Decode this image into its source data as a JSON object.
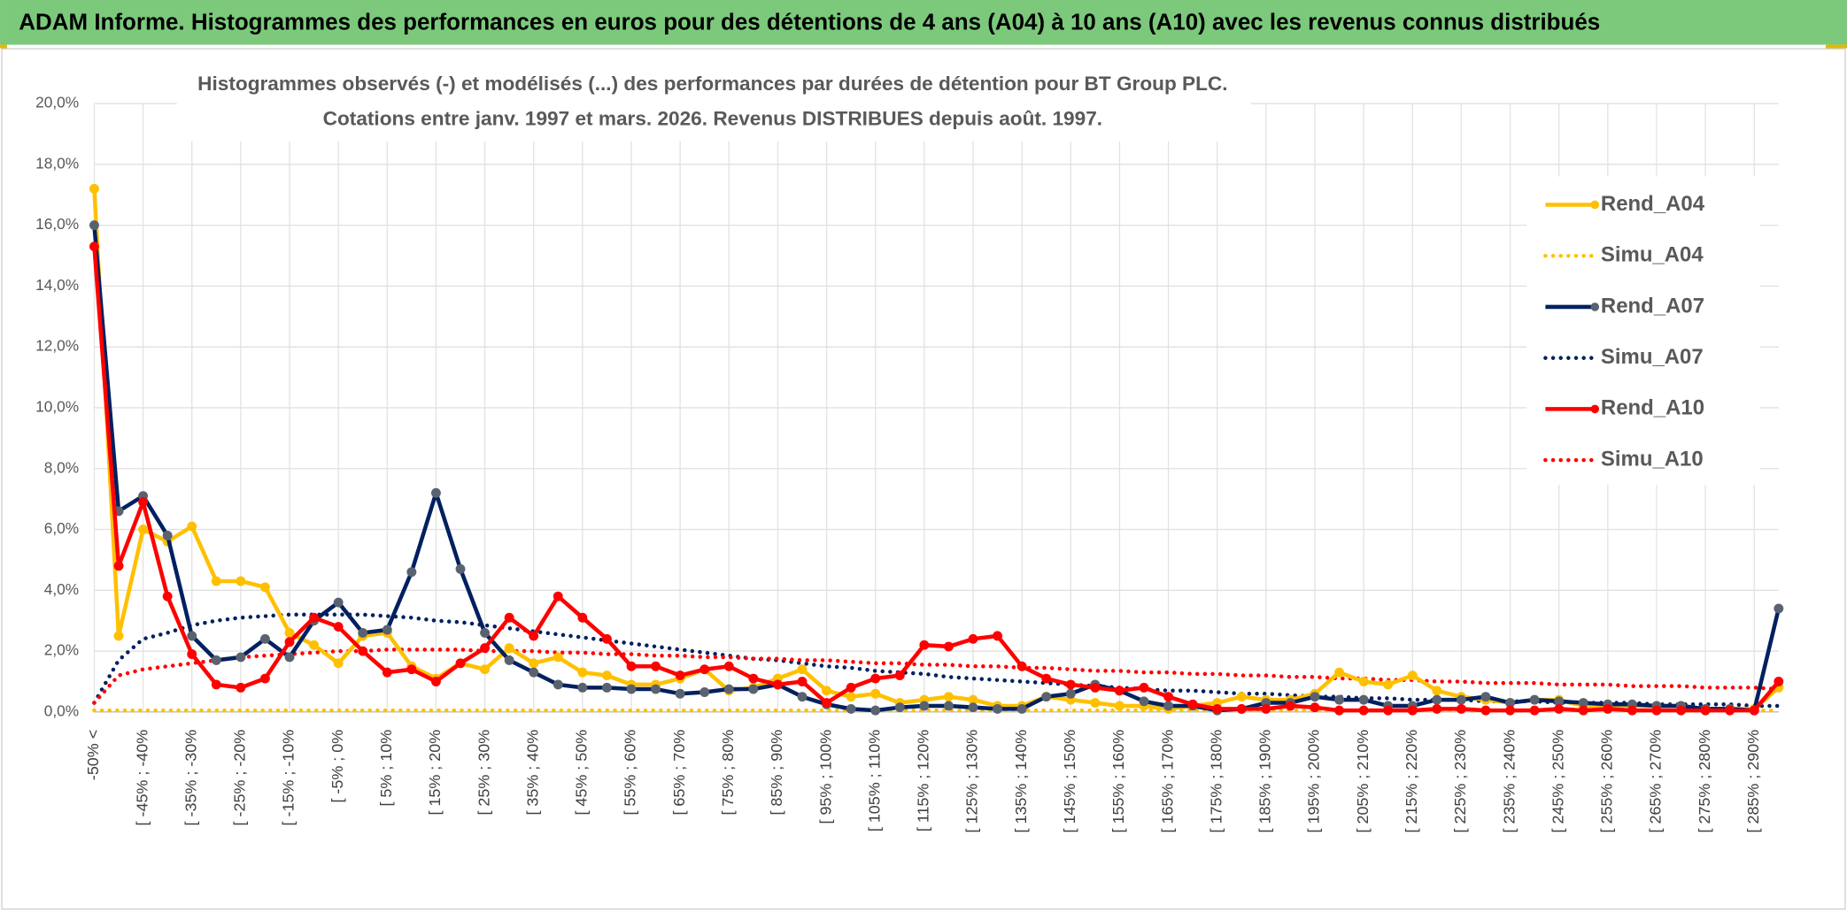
{
  "header": {
    "title": "ADAM Informe. Histogrammes des performances en euros pour des détentions de 4 ans (A04) à 10 ans (A10) avec les revenus connus distribués"
  },
  "chart_data": {
    "type": "line",
    "title": "Histogrammes observés (-) et modélisés (...) des performances par durées de détention pour BT Group PLC.",
    "subtitle": "Cotations entre janv. 1997 et mars. 2026. Revenus DISTRIBUES depuis août. 1997.",
    "categories": [
      "-50% <",
      null,
      "[ -45% ; -40%",
      null,
      "[ -35% ; -30%",
      null,
      "[ -25% ; -20%",
      null,
      "[ -15% ; -10%",
      null,
      "[ -5% ; 0%",
      null,
      "[ 5% ; 10%",
      null,
      "[ 15% ; 20%",
      null,
      "[ 25% ; 30%",
      null,
      "[ 35% ; 40%",
      null,
      "[ 45% ; 50%",
      null,
      "[ 55% ; 60%",
      null,
      "[ 65% ; 70%",
      null,
      "[ 75% ; 80%",
      null,
      "[ 85% ; 90%",
      null,
      "[ 95% ; 100%",
      null,
      "[ 105% ; 110%",
      null,
      "[ 115% ; 120%",
      null,
      "[ 125% ; 130%",
      null,
      "[ 135% ; 140%",
      null,
      "[ 145% ; 150%",
      null,
      "[ 155% ; 160%",
      null,
      "[ 165% ; 170%",
      null,
      "[ 175% ; 180%",
      null,
      "[ 185% ; 190%",
      null,
      "[ 195% ; 200%",
      null,
      "[ 205% ; 210%",
      null,
      "[ 215% ; 220%",
      null,
      "[ 225% ; 230%",
      null,
      "[ 235% ; 240%",
      null,
      "[ 245% ; 250%",
      null,
      "[ 255% ; 260%",
      null,
      "[ 265% ; 270%",
      null,
      "[ 275% ; 280%",
      null,
      "[ 285% ; 290%",
      null
    ],
    "series": [
      {
        "name": "Rend_A04",
        "color": "#ffc000",
        "line_style": "solid",
        "markers": true,
        "marker_color": "#ffc000",
        "values": [
          17.2,
          2.5,
          6.0,
          5.6,
          6.1,
          4.3,
          4.3,
          4.1,
          2.6,
          2.2,
          1.6,
          2.5,
          2.6,
          1.5,
          1.1,
          1.6,
          1.4,
          2.1,
          1.6,
          1.8,
          1.3,
          1.2,
          0.9,
          0.9,
          1.1,
          1.4,
          0.7,
          0.8,
          1.1,
          1.4,
          0.7,
          0.5,
          0.6,
          0.3,
          0.4,
          0.5,
          0.4,
          0.2,
          0.2,
          0.5,
          0.4,
          0.3,
          0.2,
          0.2,
          0.1,
          0.2,
          0.3,
          0.5,
          0.4,
          0.4,
          0.6,
          1.3,
          1.0,
          0.9,
          1.2,
          0.7,
          0.5,
          0.4,
          0.3,
          0.4,
          0.4,
          0.2,
          0.2,
          0.2,
          0.2,
          0.2,
          0.1,
          0.1,
          0.1,
          0.8
        ]
      },
      {
        "name": "Simu_A04",
        "color": "#ffc000",
        "line_style": "dotted",
        "markers": false,
        "values": [
          0.05,
          0.05,
          0.05,
          0.05,
          0.05,
          0.05,
          0.05,
          0.05,
          0.05,
          0.05,
          0.05,
          0.05,
          0.05,
          0.05,
          0.05,
          0.05,
          0.05,
          0.05,
          0.05,
          0.05,
          0.05,
          0.05,
          0.05,
          0.05,
          0.05,
          0.05,
          0.05,
          0.05,
          0.05,
          0.05,
          0.05,
          0.05,
          0.05,
          0.05,
          0.05,
          0.05,
          0.05,
          0.05,
          0.05,
          0.05,
          0.05,
          0.05,
          0.05,
          0.05,
          0.05,
          0.05,
          0.05,
          0.05,
          0.05,
          0.05,
          0.05,
          0.05,
          0.05,
          0.05,
          0.05,
          0.05,
          0.05,
          0.05,
          0.05,
          0.05,
          0.05,
          0.05,
          0.05,
          0.05,
          0.05,
          0.05,
          0.05,
          0.05,
          0.05,
          0.05
        ]
      },
      {
        "name": "Rend_A07",
        "color": "#002060",
        "line_style": "solid",
        "markers": true,
        "marker_color": "#5a6270",
        "values": [
          16.0,
          6.6,
          7.1,
          5.8,
          2.5,
          1.7,
          1.8,
          2.4,
          1.8,
          3.0,
          3.6,
          2.6,
          2.7,
          4.6,
          7.2,
          4.7,
          2.6,
          1.7,
          1.3,
          0.9,
          0.8,
          0.8,
          0.75,
          0.75,
          0.6,
          0.65,
          0.75,
          0.75,
          0.9,
          0.5,
          0.25,
          0.1,
          0.05,
          0.15,
          0.2,
          0.2,
          0.15,
          0.1,
          0.1,
          0.5,
          0.6,
          0.9,
          0.7,
          0.35,
          0.2,
          0.2,
          0.05,
          0.1,
          0.3,
          0.3,
          0.5,
          0.4,
          0.4,
          0.2,
          0.2,
          0.4,
          0.4,
          0.5,
          0.3,
          0.4,
          0.35,
          0.3,
          0.25,
          0.25,
          0.2,
          0.2,
          0.1,
          0.1,
          0.05,
          3.4
        ]
      },
      {
        "name": "Simu_A07",
        "color": "#002060",
        "line_style": "dotted",
        "markers": false,
        "values": [
          0.3,
          1.7,
          2.4,
          2.6,
          2.85,
          3.0,
          3.1,
          3.15,
          3.2,
          3.2,
          3.2,
          3.2,
          3.15,
          3.1,
          3.0,
          2.95,
          2.85,
          2.75,
          2.65,
          2.55,
          2.45,
          2.35,
          2.25,
          2.15,
          2.05,
          1.95,
          1.85,
          1.75,
          1.7,
          1.6,
          1.5,
          1.45,
          1.35,
          1.3,
          1.25,
          1.15,
          1.1,
          1.05,
          1.0,
          0.95,
          0.9,
          0.85,
          0.8,
          0.75,
          0.7,
          0.7,
          0.65,
          0.6,
          0.6,
          0.55,
          0.5,
          0.5,
          0.45,
          0.45,
          0.4,
          0.4,
          0.4,
          0.35,
          0.35,
          0.35,
          0.3,
          0.3,
          0.3,
          0.3,
          0.25,
          0.25,
          0.25,
          0.25,
          0.2,
          0.2
        ]
      },
      {
        "name": "Rend_A10",
        "color": "#ff0000",
        "line_style": "solid",
        "markers": true,
        "marker_color": "#ff0000",
        "values": [
          15.3,
          4.8,
          6.9,
          3.8,
          1.9,
          0.9,
          0.8,
          1.1,
          2.3,
          3.1,
          2.8,
          2.0,
          1.3,
          1.4,
          1.0,
          1.6,
          2.1,
          3.1,
          2.5,
          3.8,
          3.1,
          2.4,
          1.5,
          1.5,
          1.2,
          1.4,
          1.5,
          1.1,
          0.9,
          1.0,
          0.3,
          0.8,
          1.1,
          1.2,
          2.2,
          2.15,
          2.4,
          2.5,
          1.5,
          1.1,
          0.9,
          0.8,
          0.7,
          0.8,
          0.5,
          0.25,
          0.1,
          0.1,
          0.1,
          0.2,
          0.15,
          0.05,
          0.05,
          0.05,
          0.05,
          0.1,
          0.1,
          0.05,
          0.05,
          0.05,
          0.1,
          0.05,
          0.1,
          0.05,
          0.05,
          0.05,
          0.05,
          0.05,
          0.05,
          1.0
        ]
      },
      {
        "name": "Simu_A10",
        "color": "#ff0000",
        "line_style": "dotted",
        "markers": false,
        "values": [
          0.3,
          1.2,
          1.4,
          1.5,
          1.6,
          1.7,
          1.8,
          1.85,
          1.9,
          1.95,
          2.0,
          2.0,
          2.05,
          2.05,
          2.05,
          2.05,
          2.0,
          2.0,
          2.0,
          1.95,
          1.95,
          1.9,
          1.9,
          1.85,
          1.85,
          1.8,
          1.8,
          1.75,
          1.75,
          1.7,
          1.7,
          1.65,
          1.6,
          1.6,
          1.55,
          1.55,
          1.5,
          1.5,
          1.45,
          1.45,
          1.4,
          1.35,
          1.35,
          1.3,
          1.3,
          1.25,
          1.25,
          1.2,
          1.2,
          1.15,
          1.15,
          1.1,
          1.1,
          1.05,
          1.05,
          1.0,
          1.0,
          0.95,
          0.95,
          0.95,
          0.9,
          0.9,
          0.9,
          0.85,
          0.85,
          0.85,
          0.8,
          0.8,
          0.8,
          0.75
        ]
      }
    ],
    "ylim": [
      0,
      20
    ],
    "yticks": [
      {
        "value": 0,
        "label": "0,0%"
      },
      {
        "value": 2,
        "label": "2,0%"
      },
      {
        "value": 4,
        "label": "4,0%"
      },
      {
        "value": 6,
        "label": "6,0%"
      },
      {
        "value": 8,
        "label": "8,0%"
      },
      {
        "value": 10,
        "label": "10,0%"
      },
      {
        "value": 12,
        "label": "12,0%"
      },
      {
        "value": 14,
        "label": "14,0%"
      },
      {
        "value": 16,
        "label": "16,0%"
      },
      {
        "value": 18,
        "label": "18,0%"
      },
      {
        "value": 20,
        "label": "20,0%"
      }
    ],
    "grid": true,
    "legend": "right"
  }
}
